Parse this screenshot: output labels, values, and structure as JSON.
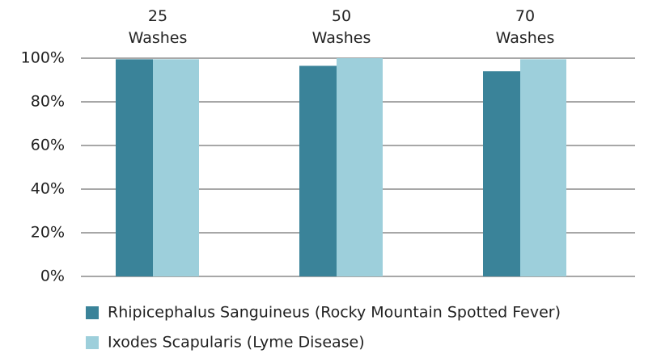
{
  "chart_data": {
    "type": "bar",
    "categories": [
      "25 Washes",
      "50 Washes",
      "70 Washes"
    ],
    "series": [
      {
        "name": "Rhipicephalus Sanguineus (Rocky Mountain Spotted Fever)",
        "color": "#3a8399",
        "values": [
          99.5,
          96.5,
          94
        ]
      },
      {
        "name": "Ixodes Scapularis (Lyme Disease)",
        "color": "#9dcfdb",
        "values": [
          99.5,
          100,
          99.5
        ]
      }
    ],
    "ylim": [
      0,
      100
    ],
    "yticks": [
      {
        "value": 0,
        "label": "0%"
      },
      {
        "value": 20,
        "label": "20%"
      },
      {
        "value": 40,
        "label": "40%"
      },
      {
        "value": 60,
        "label": "60%"
      },
      {
        "value": 80,
        "label": "80%"
      },
      {
        "value": 100,
        "label": "100%"
      }
    ],
    "grid": true
  }
}
